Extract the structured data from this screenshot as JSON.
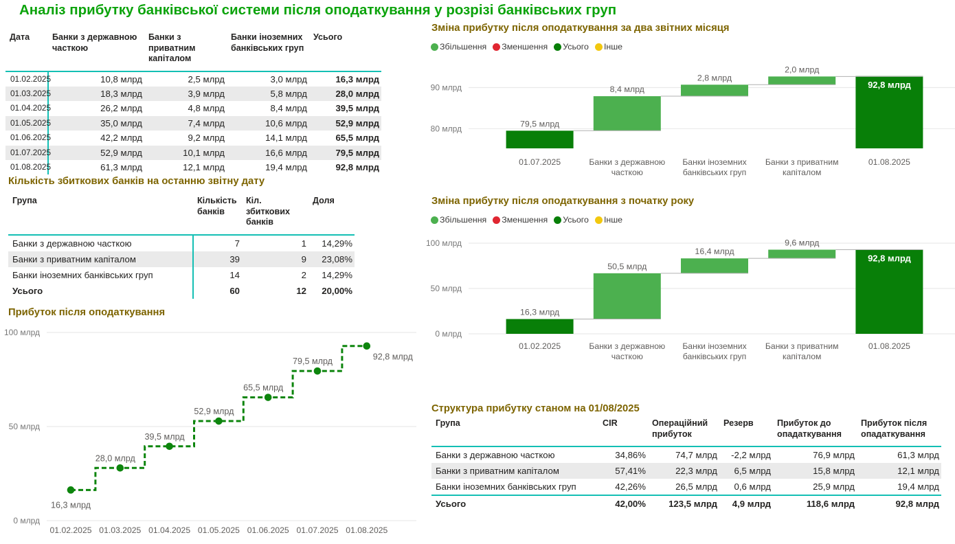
{
  "page": {
    "title": "Аналіз прибутку банківської системи після оподаткування у розрізі банківських груп"
  },
  "colors": {
    "title_green": "#0ba30b",
    "section_title_olive": "#7d6400",
    "accent_teal": "#14bfb4",
    "increase_green": "#4cb04f",
    "decrease_red": "#e02631",
    "total_dark_green": "#087f08",
    "other_yellow": "#f2c80f",
    "line_green": "#0d850d",
    "row_band_gray": "#eaeaea"
  },
  "profit_table": {
    "columns": [
      "Дата",
      "Банки з державною часткою",
      "Банки з приватним капіталом",
      "Банки іноземних банківських груп",
      "Усього"
    ],
    "rows": [
      [
        "01.02.2025",
        "10,8 млрд",
        "2,5 млрд",
        "3,0 млрд",
        "16,3 млрд"
      ],
      [
        "01.03.2025",
        "18,3 млрд",
        "3,9 млрд",
        "5,8 млрд",
        "28,0 млрд"
      ],
      [
        "01.04.2025",
        "26,2 млрд",
        "4,8 млрд",
        "8,4 млрд",
        "39,5 млрд"
      ],
      [
        "01.05.2025",
        "35,0 млрд",
        "7,4 млрд",
        "10,6 млрд",
        "52,9 млрд"
      ],
      [
        "01.06.2025",
        "42,2 млрд",
        "9,2 млрд",
        "14,1 млрд",
        "65,5 млрд"
      ],
      [
        "01.07.2025",
        "52,9 млрд",
        "10,1 млрд",
        "16,6 млрд",
        "79,5 млрд"
      ],
      [
        "01.08.2025",
        "61,3 млрд",
        "12,1 млрд",
        "19,4 млрд",
        "92,8 млрд"
      ]
    ]
  },
  "loss_table": {
    "title": "Кількість збиткових банків на останню звітну дату",
    "columns": [
      "Група",
      "Кількість банків",
      "Кіл. збиткових банків",
      "Доля"
    ],
    "rows": [
      [
        "Банки з державною часткою",
        "7",
        "1",
        "14,29%"
      ],
      [
        "Банки з приватним капіталом",
        "39",
        "9",
        "23,08%"
      ],
      [
        "Банки іноземних банківських груп",
        "14",
        "2",
        "14,29%"
      ]
    ],
    "total_row": [
      "Усього",
      "60",
      "12",
      "20,00%"
    ]
  },
  "structure_table": {
    "title": "Структура прибутку станом на 01/08/2025",
    "columns": [
      "Група",
      "CIR",
      "Операційний прибуток",
      "Резерв",
      "Прибуток до опадаткування",
      "Прибуток після опадаткування"
    ],
    "rows": [
      [
        "Банки з державною часткою",
        "34,86%",
        "74,7 млрд",
        "-2,2 млрд",
        "76,9 млрд",
        "61,3 млрд"
      ],
      [
        "Банки з приватним капіталом",
        "57,41%",
        "22,3 млрд",
        "6,5 млрд",
        "15,8 млрд",
        "12,1 млрд"
      ],
      [
        "Банки іноземних банківських груп",
        "42,26%",
        "26,5 млрд",
        "0,6 млрд",
        "25,9 млрд",
        "19,4 млрд"
      ]
    ],
    "total_row": [
      "Усього",
      "42,00%",
      "123,5 млрд",
      "4,9 млрд",
      "118,6 млрд",
      "92,8 млрд"
    ]
  },
  "chart_data": [
    {
      "type": "line",
      "style": "stepped-dashed",
      "title": "Прибуток після оподаткування",
      "x": [
        "01.02.2025",
        "01.03.2025",
        "01.04.2025",
        "01.05.2025",
        "01.06.2025",
        "01.07.2025",
        "01.08.2025"
      ],
      "values": [
        16.3,
        28.0,
        39.5,
        52.9,
        65.5,
        79.5,
        92.8
      ],
      "point_labels": [
        "16,3 млрд",
        "28,0 млрд",
        "39,5 млрд",
        "52,9 млрд",
        "65,5 млрд",
        "79,5 млрд",
        "92,8 млрд"
      ],
      "yticks": [
        {
          "v": 0,
          "label": "0 млрд"
        },
        {
          "v": 50,
          "label": "50 млрд"
        },
        {
          "v": 100,
          "label": "100 млрд"
        }
      ],
      "ylim": [
        0,
        100
      ],
      "line_color": "#0d850d",
      "grid": true,
      "legend_position": "none"
    },
    {
      "type": "waterfall",
      "title": "Зміна прибутку після оподаткування за два звітних місяця",
      "legend": [
        {
          "label": "Збільшення",
          "color": "#4cb04f"
        },
        {
          "label": "Зменшення",
          "color": "#e02631"
        },
        {
          "label": "Усього",
          "color": "#087f08"
        },
        {
          "label": "Інше",
          "color": "#f2c80f"
        }
      ],
      "legend_position": "top-left",
      "categories": [
        "01.07.2025",
        "Банки з державною\nчасткою",
        "Банки іноземних\nбанківських груп",
        "Банки з приватним\nкапіталом",
        "01.08.2025"
      ],
      "values": [
        79.5,
        8.4,
        2.8,
        2.0,
        92.8
      ],
      "bar_labels": [
        "79,5 млрд",
        "8,4 млрд",
        "2,8 млрд",
        "2,0 млрд",
        "92,8 млрд"
      ],
      "roles": [
        "total",
        "increase",
        "increase",
        "increase",
        "total"
      ],
      "yticks": [
        {
          "v": 80,
          "label": "80 млрд"
        },
        {
          "v": 90,
          "label": "90 млрд"
        }
      ],
      "ylim": [
        75.2,
        94.6
      ],
      "grid": true
    },
    {
      "type": "waterfall",
      "title": "Зміна прибутку після оподаткування з початку року",
      "legend": [
        {
          "label": "Збільшення",
          "color": "#4cb04f"
        },
        {
          "label": "Зменшення",
          "color": "#e02631"
        },
        {
          "label": "Усього",
          "color": "#087f08"
        },
        {
          "label": "Інше",
          "color": "#f2c80f"
        }
      ],
      "legend_position": "top-left",
      "categories": [
        "01.02.2025",
        "Банки з державною\nчасткою",
        "Банки іноземних\nбанківських груп",
        "Банки з приватним\nкапіталом",
        "01.08.2025"
      ],
      "values": [
        16.3,
        50.5,
        16.4,
        9.6,
        92.8
      ],
      "bar_labels": [
        "16,3 млрд",
        "50,5 млрд",
        "16,4 млрд",
        "9,6 млрд",
        "92,8 млрд"
      ],
      "roles": [
        "total",
        "increase",
        "increase",
        "increase",
        "total"
      ],
      "yticks": [
        {
          "v": 0,
          "label": "0 млрд"
        },
        {
          "v": 50,
          "label": "50 млрд"
        },
        {
          "v": 100,
          "label": "100 млрд"
        }
      ],
      "ylim": [
        0,
        103
      ],
      "grid": true
    }
  ]
}
